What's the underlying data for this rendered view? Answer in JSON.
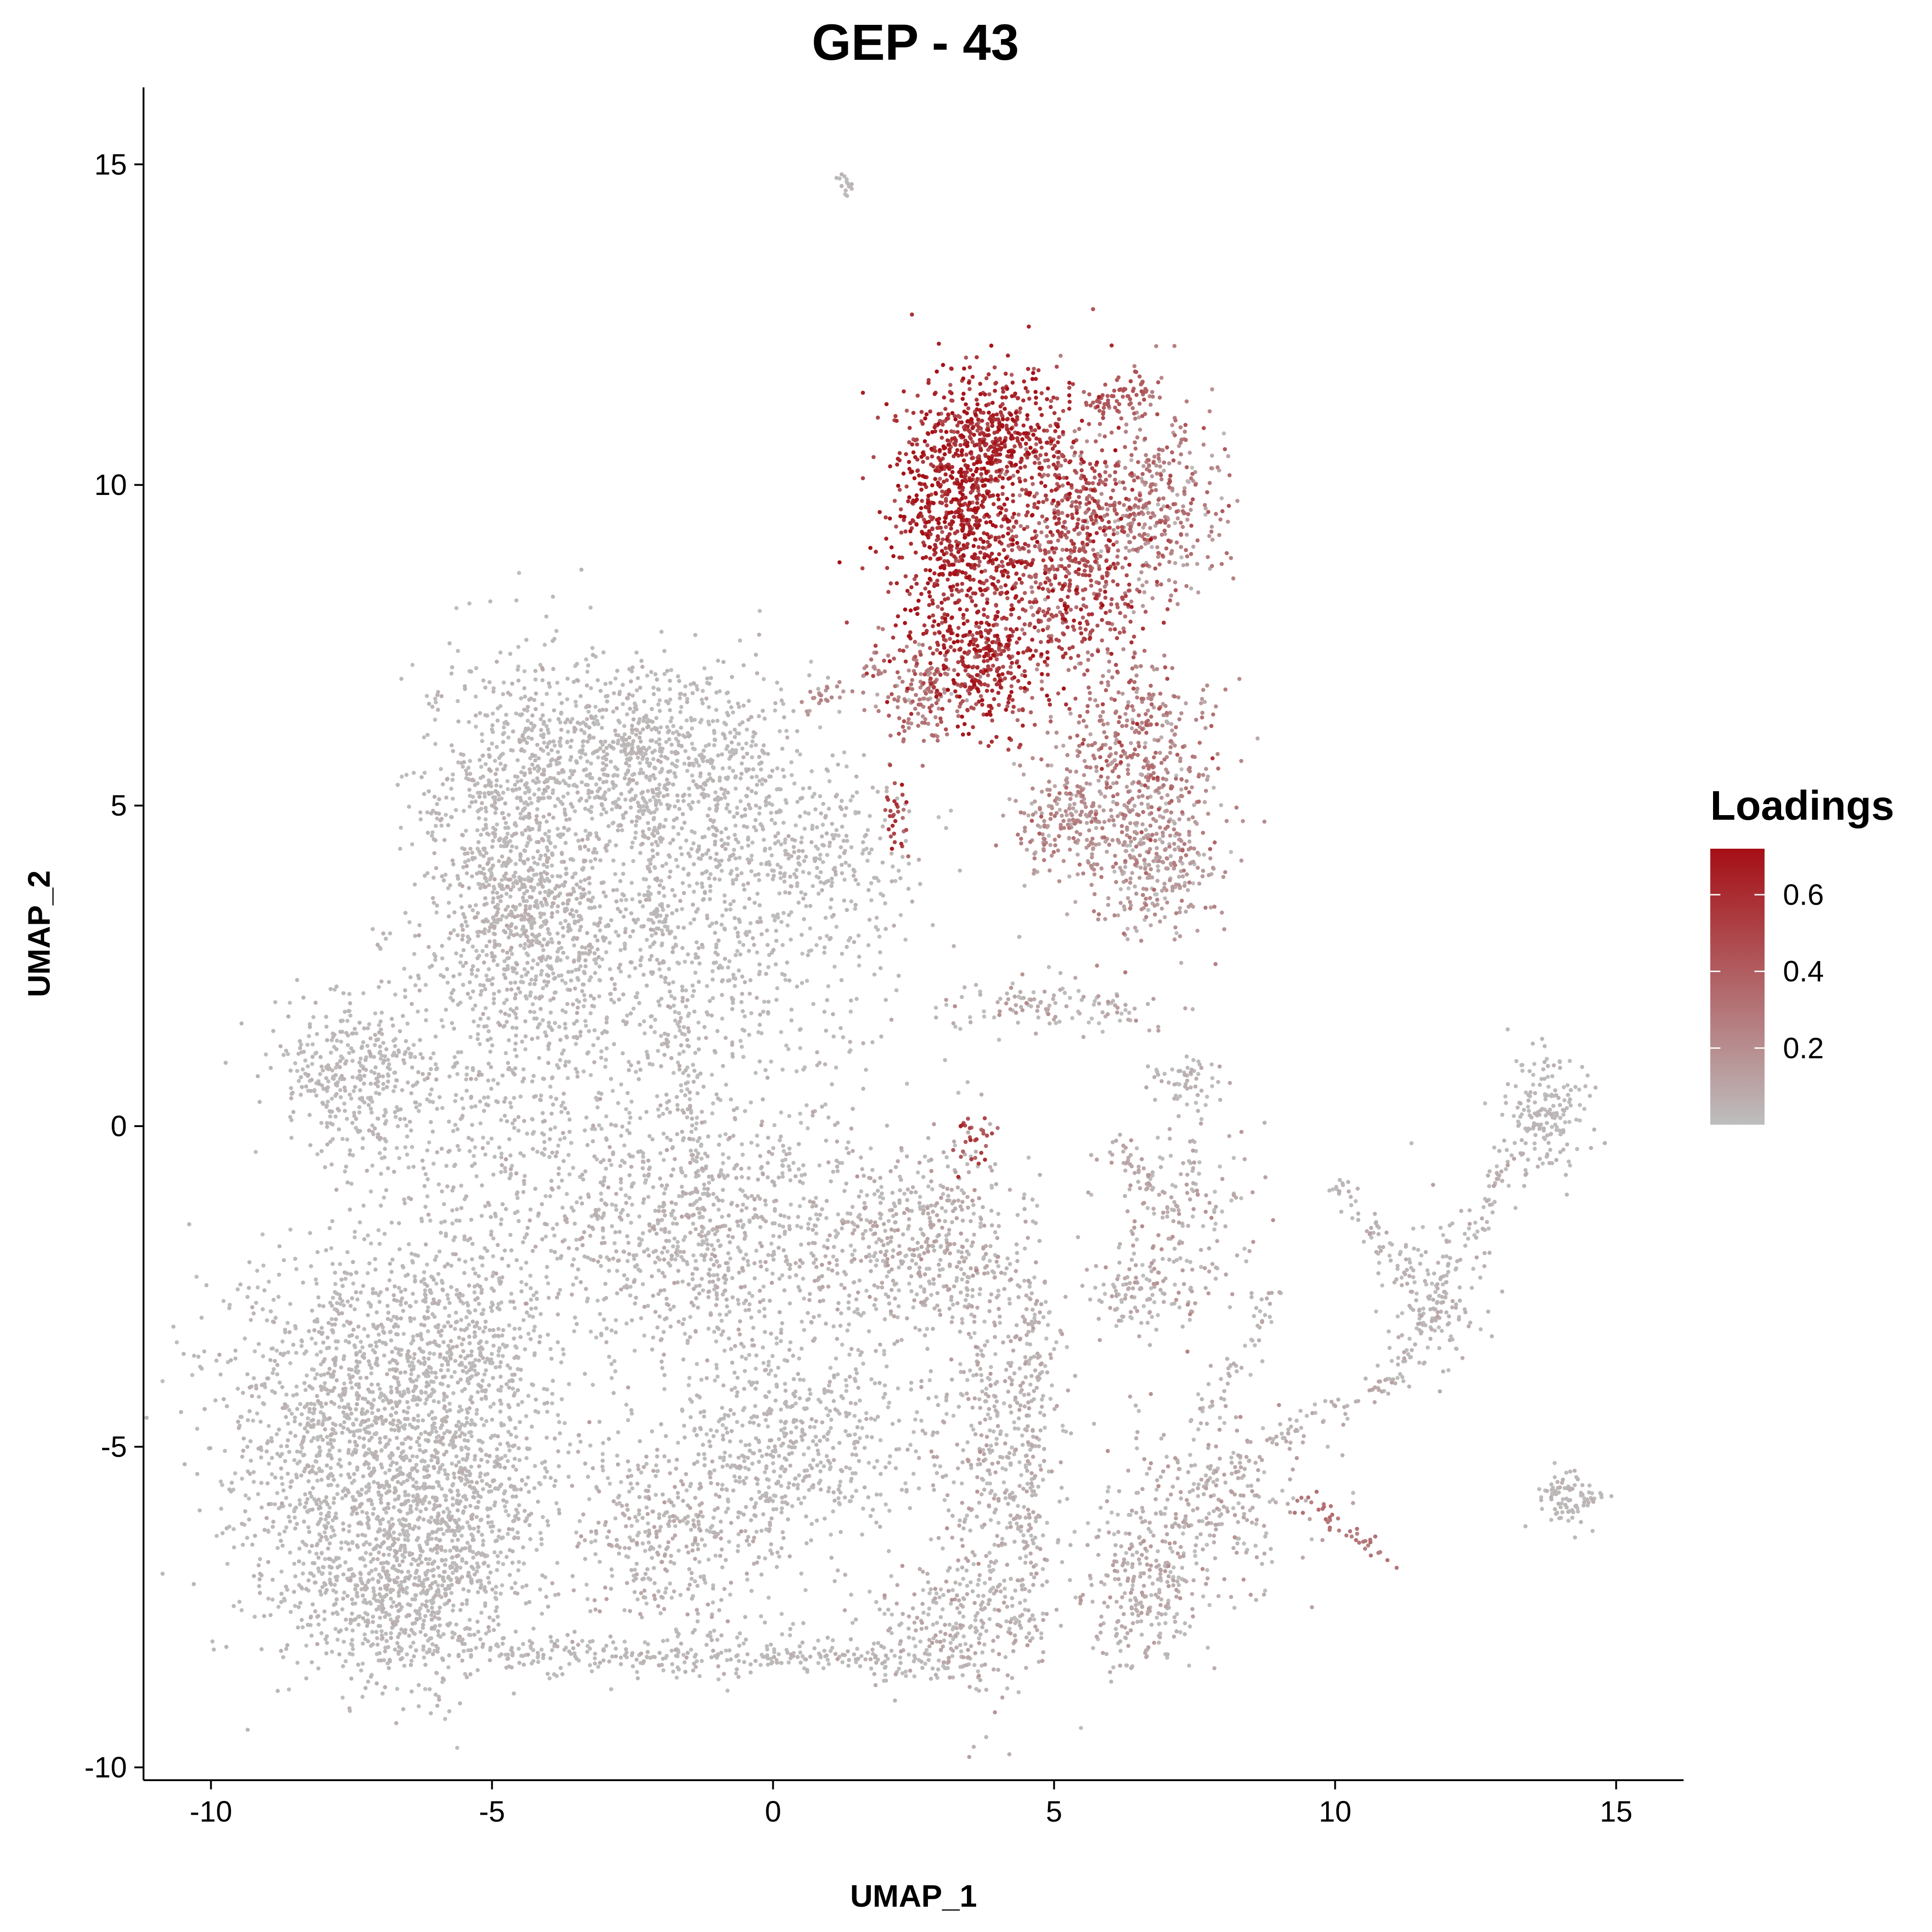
{
  "chart_data": {
    "type": "scatter",
    "title": "GEP - 43",
    "xlabel": "UMAP_1",
    "ylabel": "UMAP_2",
    "xlim": [
      -11.2,
      16.2
    ],
    "ylim": [
      -10.2,
      16.2
    ],
    "x_ticks": [
      -10,
      -5,
      0,
      5,
      10,
      15
    ],
    "y_ticks": [
      -10,
      -5,
      0,
      5,
      10,
      15
    ],
    "x_tick_labels": [
      "-10",
      "-5",
      "0",
      "5",
      "10",
      "15"
    ],
    "y_tick_labels": [
      "-10",
      "-5",
      "0",
      "5",
      "10",
      "15"
    ],
    "grid": false,
    "legend": {
      "title": "Loadings",
      "position": "right",
      "type": "colorbar",
      "range": [
        0.0,
        0.72
      ],
      "breaks": [
        0.2,
        0.4,
        0.6
      ],
      "break_labels": [
        "0.2",
        "0.4",
        "0.6"
      ],
      "low_color": "#bebebe",
      "high_color": "#a50f15"
    },
    "point_color_low": "#bebebe",
    "point_color_high": "#a50f15",
    "clusters": [
      {
        "cx": -2.3,
        "cy": 5.8,
        "sx": 1.5,
        "sy": 0.8,
        "n": 900,
        "loading": 0.02,
        "spread": 0.02
      },
      {
        "cx": -4.6,
        "cy": 4.6,
        "sx": 0.9,
        "sy": 1.4,
        "n": 700,
        "loading": 0.02,
        "spread": 0.02
      },
      {
        "cx": -4.3,
        "cy": 3.2,
        "sx": 0.8,
        "sy": 0.8,
        "n": 350,
        "loading": 0.03,
        "spread": 0.03
      },
      {
        "cx": 0.2,
        "cy": 4.3,
        "sx": 1.2,
        "sy": 0.6,
        "n": 350,
        "loading": 0.02,
        "spread": 0.02
      },
      {
        "cx": -1.5,
        "cy": 2.5,
        "sx": 1.8,
        "sy": 1.3,
        "n": 700,
        "loading": 0.02,
        "spread": 0.02
      },
      {
        "cx": -7.5,
        "cy": 0.8,
        "sx": 0.7,
        "sy": 0.6,
        "n": 350,
        "loading": 0.02,
        "spread": 0.02
      },
      {
        "cx": -5.0,
        "cy": 0.5,
        "sx": 1.3,
        "sy": 1.2,
        "n": 400,
        "loading": 0.02,
        "spread": 0.02
      },
      {
        "cx": -1.5,
        "cy": -1.6,
        "sx": 1.5,
        "sy": 1.0,
        "n": 800,
        "loading": 0.03,
        "spread": 0.03
      },
      {
        "cx": 2.5,
        "cy": -1.8,
        "sx": 1.0,
        "sy": 0.7,
        "n": 500,
        "loading": 0.05,
        "spread": 0.05
      },
      {
        "cx": -7.5,
        "cy": -4.6,
        "sx": 1.2,
        "sy": 1.3,
        "n": 1200,
        "loading": 0.02,
        "spread": 0.02
      },
      {
        "cx": -5.5,
        "cy": -3.6,
        "sx": 1.0,
        "sy": 1.3,
        "n": 700,
        "loading": 0.02,
        "spread": 0.02
      },
      {
        "cx": -6.8,
        "cy": -7.2,
        "sx": 1.0,
        "sy": 0.8,
        "n": 700,
        "loading": 0.02,
        "spread": 0.02
      },
      {
        "cx": -5.5,
        "cy": -6.2,
        "sx": 0.8,
        "sy": 0.9,
        "n": 400,
        "loading": 0.02,
        "spread": 0.02
      },
      {
        "cx": 0.2,
        "cy": -5.0,
        "sx": 1.2,
        "sy": 0.9,
        "n": 600,
        "loading": 0.02,
        "spread": 0.02
      },
      {
        "cx": -2.0,
        "cy": -6.4,
        "sx": 0.9,
        "sy": 0.8,
        "n": 350,
        "loading": 0.04,
        "spread": 0.04
      },
      {
        "cx": 4.0,
        "cy": -4.5,
        "sx": 0.6,
        "sy": 1.8,
        "n": 500,
        "loading": 0.04,
        "spread": 0.05
      },
      {
        "cx": 3.3,
        "cy": -7.8,
        "sx": 0.8,
        "sy": 0.5,
        "n": 250,
        "loading": 0.04,
        "spread": 0.05
      },
      {
        "cx": -1.5,
        "cy": -8.2,
        "sx": 2.8,
        "sy": 0.2,
        "n": 200,
        "loading": 0.02,
        "spread": 0.02
      },
      {
        "cx": 6.7,
        "cy": -7.2,
        "sx": 0.6,
        "sy": 0.6,
        "n": 250,
        "loading": 0.05,
        "spread": 0.05
      },
      {
        "cx": 7.8,
        "cy": -5.8,
        "sx": 0.9,
        "sy": 0.7,
        "n": 250,
        "loading": 0.06,
        "spread": 0.06
      },
      {
        "cx": 7.2,
        "cy": -1.6,
        "sx": 0.7,
        "sy": 0.9,
        "n": 200,
        "loading": 0.06,
        "spread": 0.07
      },
      {
        "cx": 6.4,
        "cy": -2.6,
        "sx": 0.4,
        "sy": 0.3,
        "n": 80,
        "loading": 0.04,
        "spread": 0.04
      },
      {
        "cx": 4.8,
        "cy": 1.9,
        "sx": 1.0,
        "sy": 0.2,
        "n": 120,
        "loading": 0.06,
        "spread": 0.08
      },
      {
        "cx": 7.3,
        "cy": 0.7,
        "sx": 0.3,
        "sy": 0.2,
        "n": 50,
        "loading": 0.03,
        "spread": 0.03
      },
      {
        "cx": 11.7,
        "cy": -2.8,
        "sx": 0.5,
        "sy": 0.6,
        "n": 120,
        "loading": 0.03,
        "spread": 0.03
      },
      {
        "cx": 13.7,
        "cy": 0.2,
        "sx": 0.4,
        "sy": 0.5,
        "n": 180,
        "loading": 0.02,
        "spread": 0.02
      },
      {
        "cx": 14.2,
        "cy": -5.8,
        "sx": 0.3,
        "sy": 0.2,
        "n": 90,
        "loading": 0.02,
        "spread": 0.02
      },
      {
        "cx": 1.3,
        "cy": 14.7,
        "sx": 0.08,
        "sy": 0.08,
        "n": 15,
        "loading": 0.02,
        "spread": 0.02
      },
      {
        "cx": 3.3,
        "cy": 9.4,
        "sx": 0.6,
        "sy": 1.1,
        "n": 900,
        "loading": 0.6,
        "spread": 0.1
      },
      {
        "cx": 4.0,
        "cy": 10.8,
        "sx": 0.6,
        "sy": 0.4,
        "n": 300,
        "loading": 0.58,
        "spread": 0.1
      },
      {
        "cx": 5.3,
        "cy": 9.0,
        "sx": 0.7,
        "sy": 1.0,
        "n": 700,
        "loading": 0.45,
        "spread": 0.12
      },
      {
        "cx": 6.8,
        "cy": 9.8,
        "sx": 0.6,
        "sy": 0.8,
        "n": 350,
        "loading": 0.25,
        "spread": 0.12
      },
      {
        "cx": 3.8,
        "cy": 7.2,
        "sx": 0.5,
        "sy": 0.6,
        "n": 300,
        "loading": 0.55,
        "spread": 0.12
      },
      {
        "cx": 2.6,
        "cy": 6.8,
        "sx": 0.4,
        "sy": 0.4,
        "n": 150,
        "loading": 0.28,
        "spread": 0.1
      },
      {
        "cx": 6.5,
        "cy": 6.0,
        "sx": 0.7,
        "sy": 0.7,
        "n": 350,
        "loading": 0.25,
        "spread": 0.1
      },
      {
        "cx": 6.8,
        "cy": 4.2,
        "sx": 0.6,
        "sy": 0.6,
        "n": 350,
        "loading": 0.15,
        "spread": 0.08
      },
      {
        "cx": 5.2,
        "cy": 4.8,
        "sx": 0.5,
        "sy": 0.5,
        "n": 200,
        "loading": 0.18,
        "spread": 0.08
      },
      {
        "cx": 2.2,
        "cy": 4.8,
        "sx": 0.1,
        "sy": 0.3,
        "n": 30,
        "loading": 0.5,
        "spread": 0.1
      },
      {
        "cx": 3.6,
        "cy": -0.2,
        "sx": 0.2,
        "sy": 0.2,
        "n": 30,
        "loading": 0.45,
        "spread": 0.1
      }
    ],
    "trails": [
      {
        "x0": -6.0,
        "y0": -8.2,
        "x1": 3.5,
        "y1": -8.4,
        "n": 150,
        "loading": 0.02
      },
      {
        "x0": 7.5,
        "y0": -5.5,
        "x1": 11.0,
        "y1": -4.0,
        "n": 80,
        "loading": 0.05
      },
      {
        "x0": 11.0,
        "y0": -4.0,
        "x1": 11.8,
        "y1": -2.6,
        "n": 40,
        "loading": 0.03
      },
      {
        "x0": 11.8,
        "y0": -2.6,
        "x1": 13.3,
        "y1": -0.3,
        "n": 70,
        "loading": 0.03
      },
      {
        "x0": 10.0,
        "y0": -0.9,
        "x1": 11.5,
        "y1": -2.5,
        "n": 60,
        "loading": 0.03
      },
      {
        "x0": 8.9,
        "y0": -2.6,
        "x1": 7.5,
        "y1": -4.8,
        "n": 50,
        "loading": 0.04
      },
      {
        "x0": 9.4,
        "y0": -5.8,
        "x1": 11.0,
        "y1": -6.8,
        "n": 40,
        "loading": 0.3
      },
      {
        "x0": 6.0,
        "y0": -0.2,
        "x1": 7.2,
        "y1": -1.5,
        "n": 40,
        "loading": 0.08
      },
      {
        "x0": -2.5,
        "y0": 6.0,
        "x1": -0.8,
        "y1": -3.5,
        "n": 200,
        "loading": 0.02
      },
      {
        "x0": 4.5,
        "y0": -8.0,
        "x1": 4.6,
        "y1": -2.5,
        "n": 120,
        "loading": 0.05
      },
      {
        "x0": 0.5,
        "y0": 6.5,
        "x1": 2.0,
        "y1": 7.2,
        "n": 30,
        "loading": 0.2
      },
      {
        "x0": 5.6,
        "y0": 11.2,
        "x1": 6.6,
        "y1": 11.5,
        "n": 60,
        "loading": 0.4
      }
    ]
  }
}
